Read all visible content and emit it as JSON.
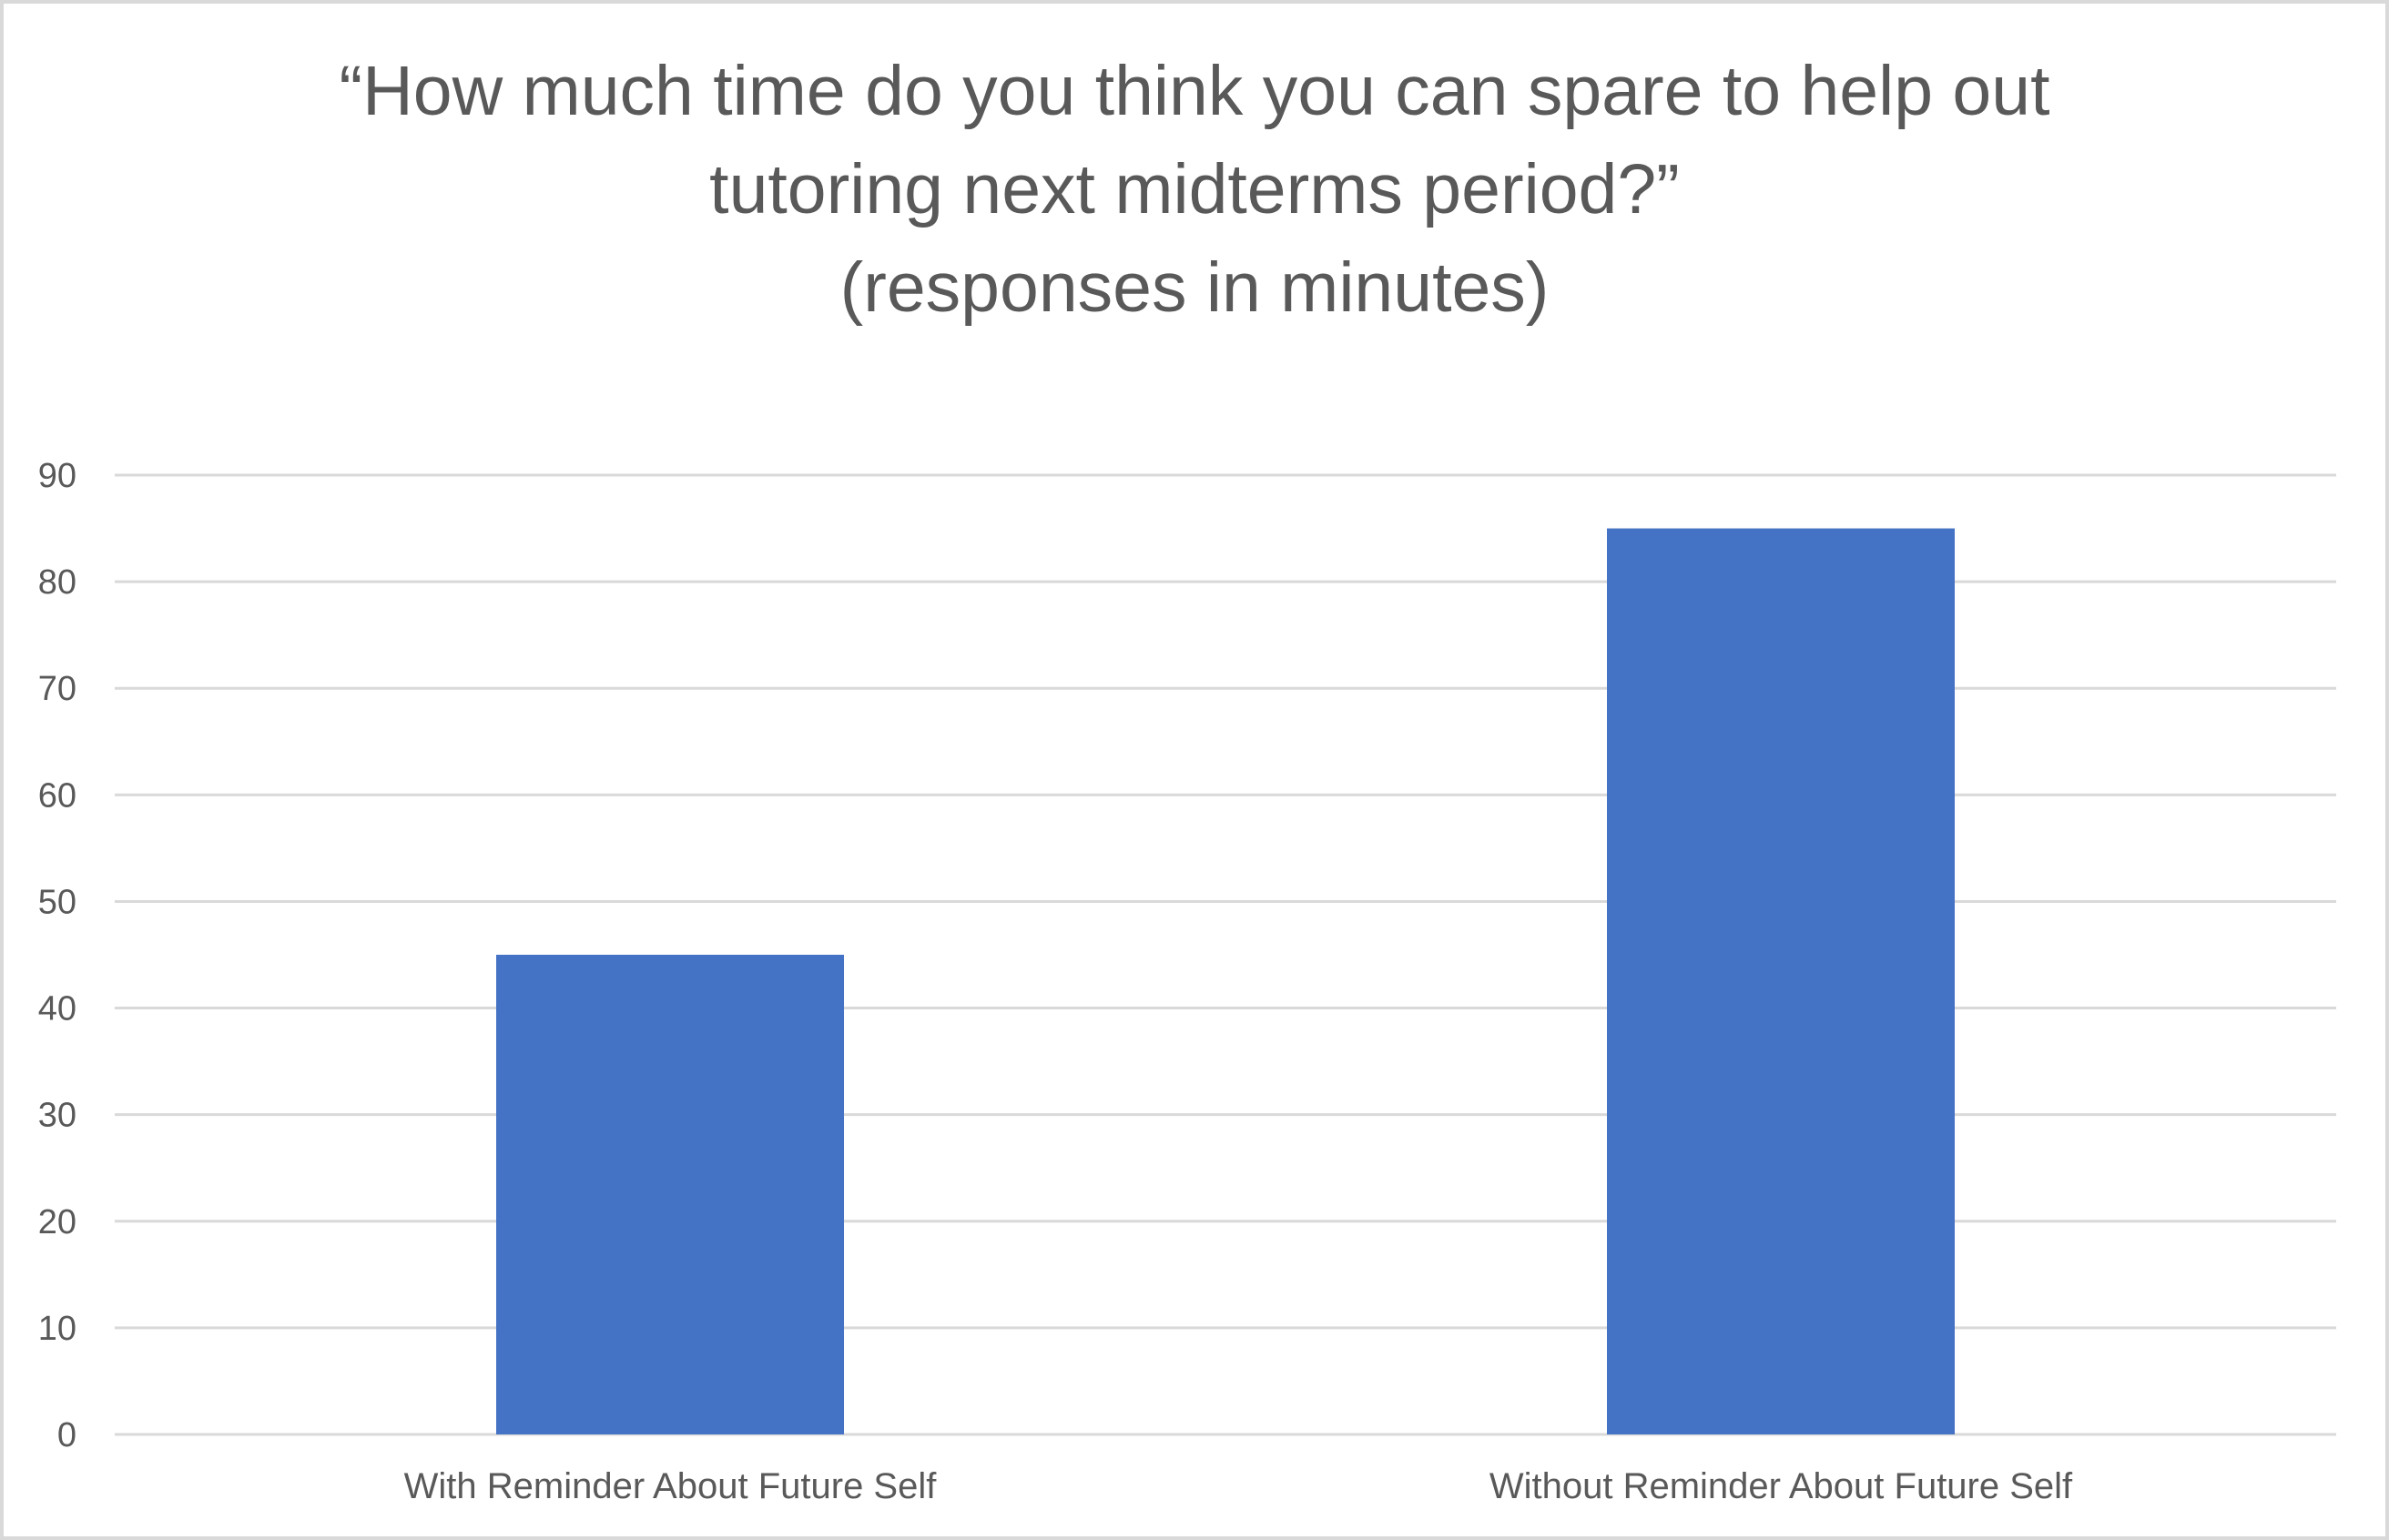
{
  "chart_data": {
    "type": "bar",
    "title": "“How much time do you think you can spare to help out tutoring next midterms period?”",
    "subtitle": "(responses in minutes)",
    "title_lines": [
      "“How much time do you think you can spare to help out",
      "tutoring next midterms period?”",
      "(responses in minutes)"
    ],
    "categories": [
      "With Reminder About Future Self",
      "Without Reminder About Future Self"
    ],
    "values": [
      45,
      85
    ],
    "xlabel": "",
    "ylabel": "",
    "ylim": [
      0,
      90
    ],
    "yticks": [
      "0",
      "10",
      "20",
      "30",
      "40",
      "50",
      "60",
      "70",
      "80",
      "90"
    ],
    "grid": true,
    "legend": "none",
    "bar_color": "#4472c4",
    "grid_color": "#d9d9d9",
    "text_color": "#595959"
  }
}
